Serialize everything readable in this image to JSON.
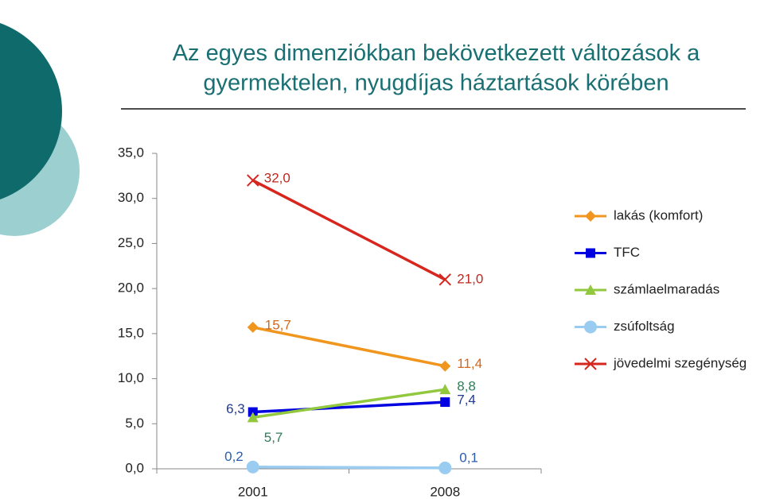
{
  "chart_data": {
    "type": "line",
    "title": "Az egyes dimenziókban bekövetkezett változások a gyermektelen, nyugdíjas háztartások körében",
    "categories": [
      "2001",
      "2008"
    ],
    "series": [
      {
        "name": "lakás (komfort)",
        "color": "#f0961e",
        "label_color": "#d2691e",
        "marker": "diamond",
        "values": [
          15.7,
          11.4
        ],
        "value_labels": [
          "15,7",
          "11,4"
        ]
      },
      {
        "name": "TFC",
        "color": "#0000e0",
        "label_color": "#1f3a93",
        "marker": "square",
        "values": [
          6.3,
          7.4
        ],
        "value_labels": [
          "6,3",
          "7,4"
        ]
      },
      {
        "name": "számlaelmaradás",
        "color": "#92c83e",
        "label_color": "#2e7d5a",
        "marker": "triangle",
        "values": [
          5.7,
          8.8
        ],
        "value_labels": [
          "5,7",
          "8,8"
        ]
      },
      {
        "name": "zsúfoltság",
        "color": "#99ccf0",
        "label_color": "#2a5db0",
        "marker": "circle",
        "values": [
          0.2,
          0.1
        ],
        "value_labels": [
          "0,2",
          "0,1"
        ]
      },
      {
        "name": "jövedelmi szegénység",
        "color": "#d7261e",
        "label_color": "#c0271e",
        "marker": "x",
        "values": [
          32.0,
          21.0
        ],
        "value_labels": [
          "32,0",
          "21,0"
        ]
      }
    ],
    "ylim": [
      0,
      35
    ],
    "yticks": [
      {
        "value": 0,
        "label": "0,0"
      },
      {
        "value": 5,
        "label": "5,0"
      },
      {
        "value": 10,
        "label": "10,0"
      },
      {
        "value": 15,
        "label": "15,0"
      },
      {
        "value": 20,
        "label": "20,0"
      },
      {
        "value": 25,
        "label": "25,0"
      },
      {
        "value": 30,
        "label": "30,0"
      },
      {
        "value": 35,
        "label": "35,0"
      }
    ]
  }
}
